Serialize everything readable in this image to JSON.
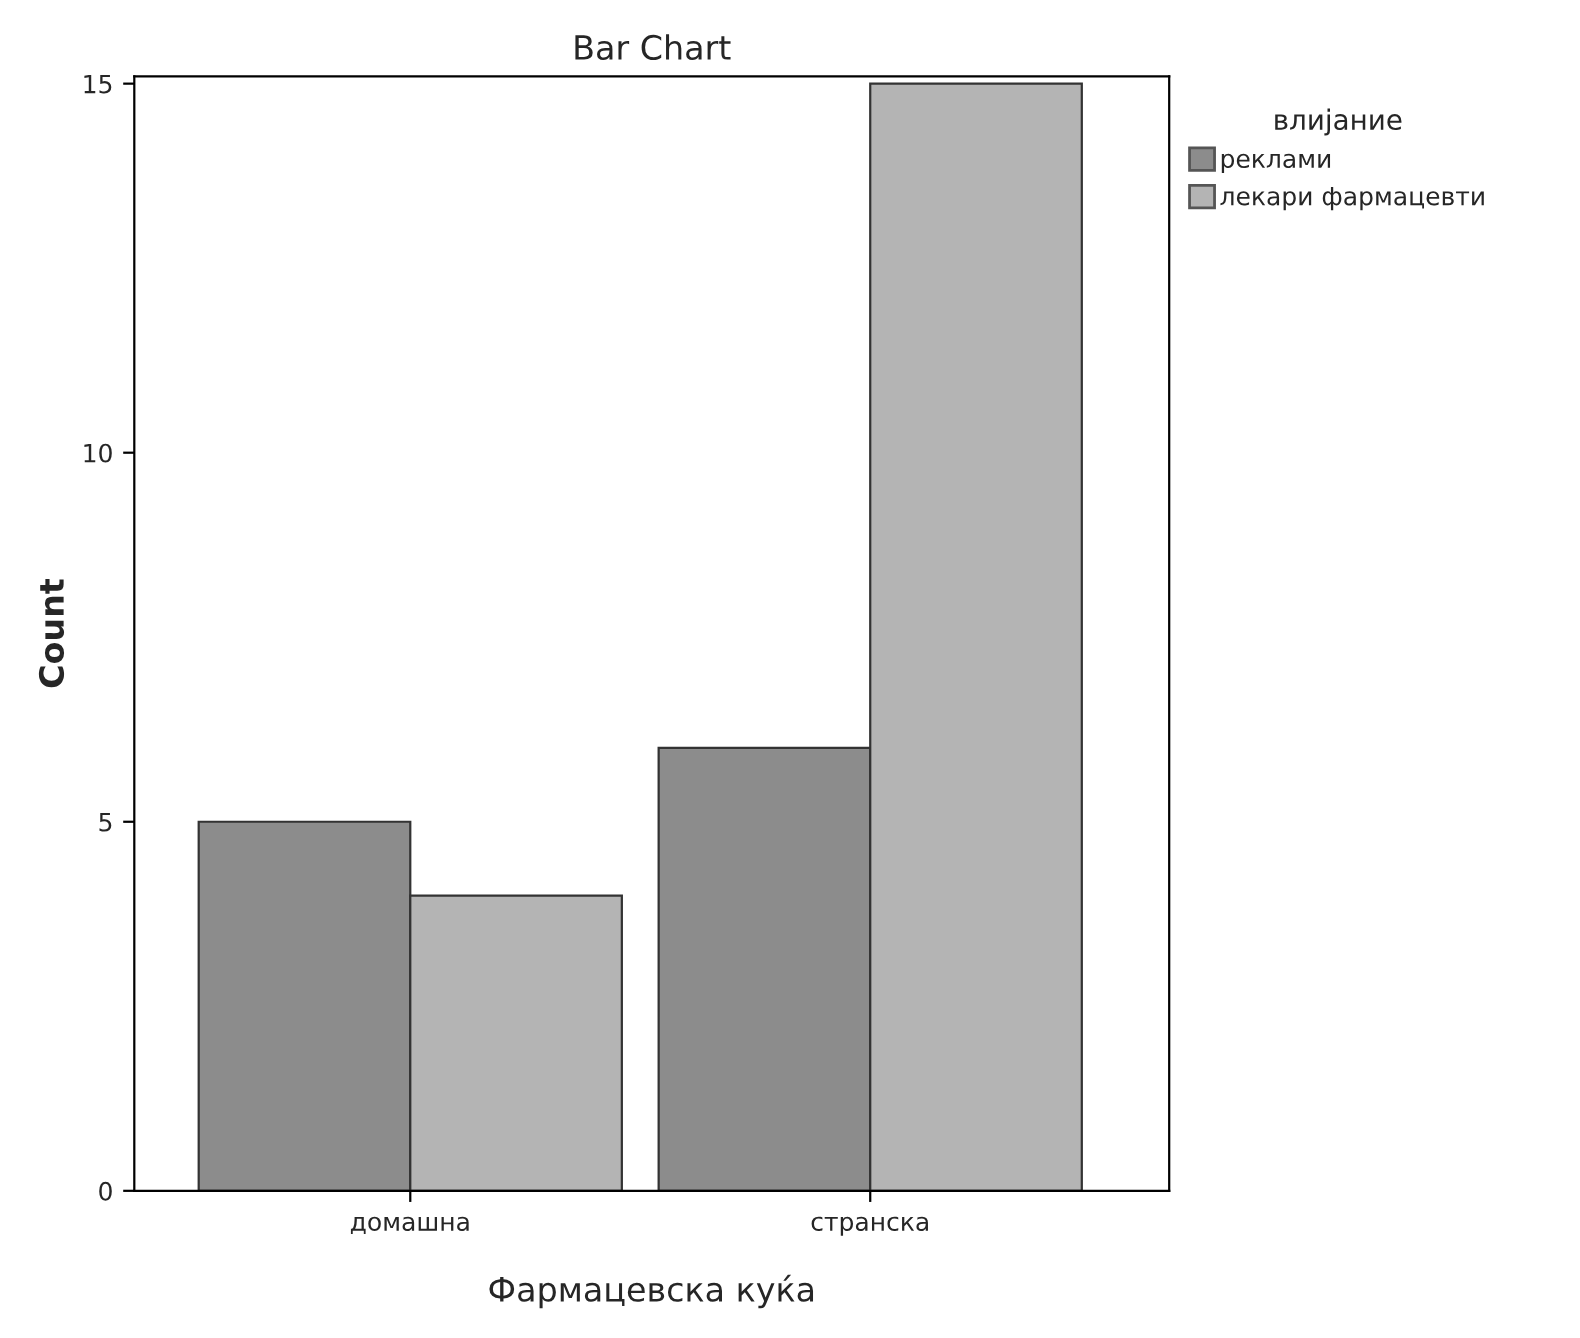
{
  "chart_data": {
    "type": "bar",
    "title": "Bar Chart",
    "xlabel": "Фармацевска куќа",
    "ylabel": "Count",
    "legend_title": "влијание",
    "categories": [
      "домашна",
      "странска"
    ],
    "series": [
      {
        "name": "реклами",
        "color": "#8c8c8c",
        "values": [
          5,
          6
        ]
      },
      {
        "name": "лекари фармацевти",
        "color": "#b4b4b4",
        "values": [
          4,
          15
        ]
      }
    ],
    "ylim": [
      0,
      15.1
    ],
    "yticks": [
      0,
      5,
      10,
      15
    ],
    "grid": false,
    "legend": "top right"
  }
}
